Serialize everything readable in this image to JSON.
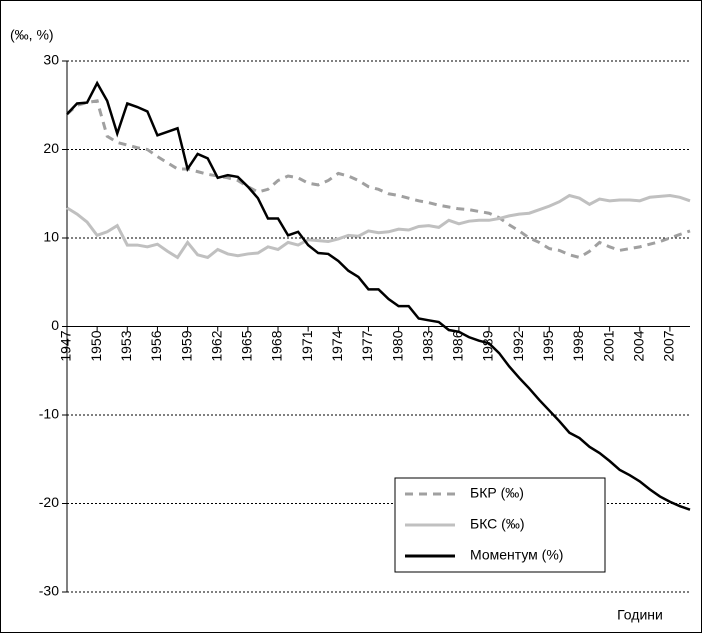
{
  "chart_data": {
    "type": "line",
    "y_label": "(‰, %)",
    "x_label": "Години",
    "x": [
      1947,
      1948,
      1949,
      1950,
      1951,
      1952,
      1953,
      1954,
      1955,
      1956,
      1957,
      1958,
      1959,
      1960,
      1961,
      1962,
      1963,
      1964,
      1965,
      1966,
      1967,
      1968,
      1969,
      1970,
      1971,
      1972,
      1973,
      1974,
      1975,
      1976,
      1977,
      1978,
      1979,
      1980,
      1981,
      1982,
      1983,
      1984,
      1985,
      1986,
      1987,
      1988,
      1989,
      1990,
      1991,
      1992,
      1993,
      1994,
      1995,
      1996,
      1997,
      1998,
      1999,
      2000,
      2001,
      2002,
      2003,
      2004,
      2005,
      2006,
      2007,
      2008,
      2009
    ],
    "xlim": [
      1947,
      2009
    ],
    "xticks": [
      1947,
      1950,
      1953,
      1956,
      1959,
      1962,
      1965,
      1968,
      1971,
      1974,
      1977,
      1980,
      1983,
      1986,
      1989,
      1992,
      1995,
      1998,
      2001,
      2004,
      2007
    ],
    "ylim": [
      -30,
      30
    ],
    "yticks": [
      -30,
      -20,
      -10,
      0,
      10,
      20,
      30
    ],
    "grid": true,
    "legend": "lower right",
    "series": [
      {
        "name": "БКР (‰)",
        "color": "#a0a0a0",
        "style": "dashed",
        "values": [
          24,
          25,
          25.3,
          25.5,
          21.5,
          20.8,
          20.5,
          20.2,
          20,
          19.2,
          18.5,
          17.8,
          17.8,
          17.5,
          17.2,
          17,
          16.8,
          16.5,
          15.8,
          15.2,
          15.5,
          16.5,
          17,
          16.8,
          16.2,
          16,
          16.5,
          17.3,
          17,
          16.5,
          15.8,
          15.5,
          15,
          14.8,
          14.5,
          14.2,
          14,
          13.7,
          13.5,
          13.3,
          13.2,
          13,
          12.8,
          12.3,
          11.5,
          10.8,
          10,
          9.5,
          8.8,
          8.6,
          8.1,
          7.8,
          8.5,
          9.5,
          9,
          8.6,
          8.8,
          9,
          9.3,
          9.6,
          10,
          10.4,
          10.8
        ]
      },
      {
        "name": "БКС (‰)",
        "color": "#c0c0c0",
        "style": "solid",
        "values": [
          13.4,
          12.7,
          11.8,
          10.3,
          10.7,
          11.4,
          9.2,
          9.2,
          9,
          9.3,
          8.5,
          7.8,
          9.5,
          8.1,
          7.8,
          8.7,
          8.2,
          8,
          8.2,
          8.3,
          9,
          8.7,
          9.5,
          9.2,
          9.8,
          9.7,
          9.6,
          9.9,
          10.3,
          10.2,
          10.8,
          10.6,
          10.7,
          11,
          10.9,
          11.3,
          11.4,
          11.2,
          12,
          11.6,
          11.9,
          12,
          12,
          12.2,
          12.5,
          12.7,
          12.8,
          13.2,
          13.6,
          14.1,
          14.8,
          14.5,
          13.8,
          14.4,
          14.2,
          14.3,
          14.3,
          14.2,
          14.6,
          14.7,
          14.8,
          14.6,
          14.2
        ]
      },
      {
        "name": "Моментум (%)",
        "color": "#000000",
        "style": "solid",
        "values": [
          24,
          25.2,
          25.3,
          27.5,
          25.5,
          21.8,
          25.2,
          24.8,
          24.3,
          21.6,
          22,
          22.4,
          17.8,
          19.5,
          19,
          16.8,
          17.1,
          16.9,
          15.8,
          14.5,
          12.2,
          12.2,
          10.3,
          10.7,
          9.2,
          8.3,
          8.2,
          7.4,
          6.3,
          5.6,
          4.2,
          4.2,
          3.1,
          2.3,
          2.3,
          0.9,
          0.7,
          0.5,
          -0.4,
          -0.6,
          -1.2,
          -1.6,
          -1.9,
          -3,
          -4.5,
          -5.8,
          -7,
          -8.3,
          -9.5,
          -10.7,
          -12,
          -12.6,
          -13.6,
          -14.3,
          -15.2,
          -16.2,
          -16.8,
          -17.5,
          -18.4,
          -19.2,
          -19.8,
          -20.3,
          -20.7
        ]
      }
    ]
  }
}
